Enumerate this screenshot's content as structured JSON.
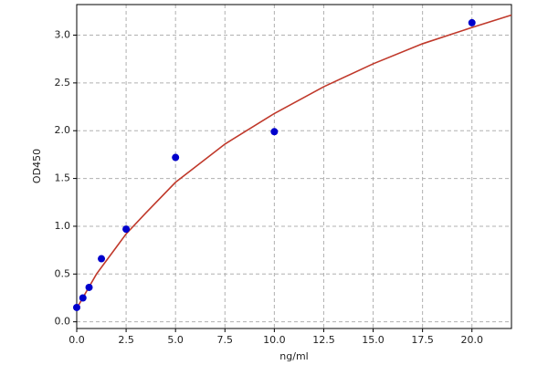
{
  "chart_data": {
    "type": "scatter",
    "x_label": "ng/ml",
    "y_label": "OD450",
    "points": {
      "color": "#0000cc",
      "x": [
        0,
        0.3125,
        0.625,
        1.25,
        2.5,
        5,
        10,
        20
      ],
      "y": [
        0.15,
        0.25,
        0.36,
        0.66,
        0.97,
        1.72,
        1.99,
        3.13
      ]
    },
    "fit": {
      "color": "#c0392b",
      "x": [
        0,
        0.5,
        1,
        1.5,
        2,
        2.5,
        3.5,
        5,
        7.5,
        10,
        12.5,
        15,
        17.5,
        20,
        22
      ],
      "y": [
        0.14,
        0.32,
        0.5,
        0.64,
        0.78,
        0.92,
        1.14,
        1.46,
        1.86,
        2.18,
        2.46,
        2.7,
        2.91,
        3.08,
        3.21
      ]
    },
    "xlim": [
      0,
      22
    ],
    "ylim": [
      -0.07,
      3.32
    ],
    "xticks": [
      {
        "value": 0,
        "label": "0.0"
      },
      2.5,
      {
        "value": 5,
        "label": "5.0"
      },
      7.5,
      {
        "value": 10,
        "label": "10.0"
      },
      12.5,
      {
        "value": 15,
        "label": "15.0"
      },
      17.5,
      {
        "value": 20,
        "label": "20.0"
      }
    ],
    "yticks": [
      {
        "value": 0,
        "label": "0.0"
      },
      0.5,
      {
        "value": 1,
        "label": "1.0"
      },
      1.5,
      {
        "value": 2,
        "label": "2.0"
      },
      2.5,
      {
        "value": 3,
        "label": "3.0"
      }
    ],
    "grid": true
  }
}
